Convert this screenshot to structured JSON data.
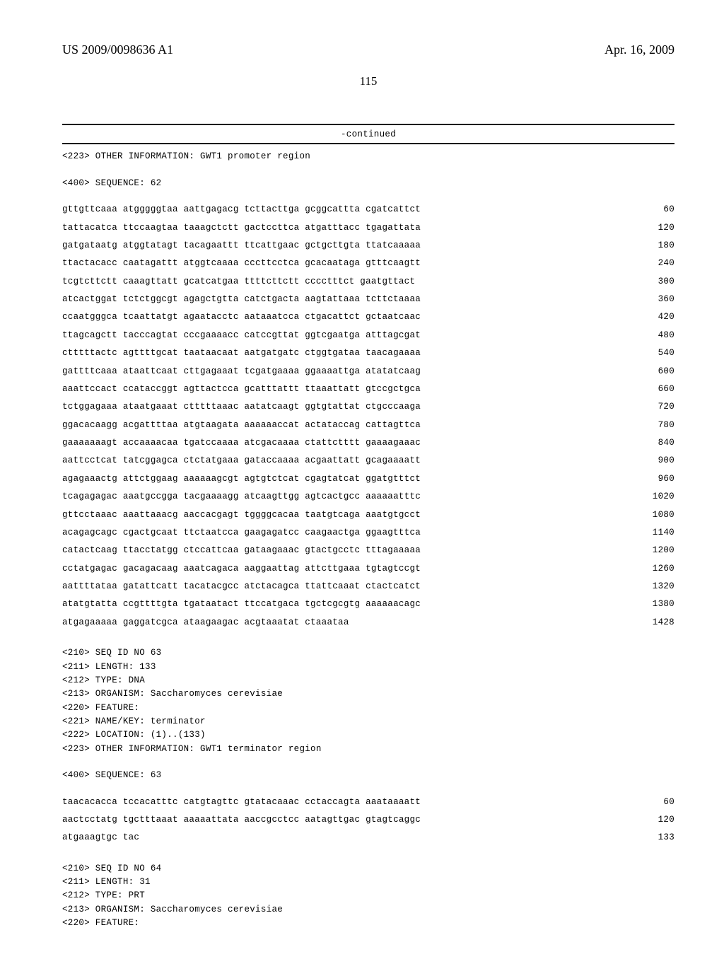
{
  "header": {
    "pub_no": "US 2009/0098636 A1",
    "pub_date": "Apr. 16, 2009",
    "page_no": "115"
  },
  "continued": "-continued",
  "block1": {
    "meta": "<223> OTHER INFORMATION: GWT1 promoter region",
    "seq_label": "<400> SEQUENCE: 62",
    "lines": [
      {
        "s": "gttgttcaaa atgggggtaa aattgagacg tcttacttga gcggcattta cgatcattct",
        "n": "60"
      },
      {
        "s": "tattacatca ttccaagtaa taaagctctt gactccttca atgatttacc tgagattata",
        "n": "120"
      },
      {
        "s": "gatgataatg atggtatagt tacagaattt ttcattgaac gctgcttgta ttatcaaaaa",
        "n": "180"
      },
      {
        "s": "ttactacacc caatagattt atggtcaaaa cccttcctca gcacaataga gtttcaagtt",
        "n": "240"
      },
      {
        "s": "tcgtcttctt caaagttatt gcatcatgaa ttttcttctt cccctttct gaatgttact",
        "n": "300"
      },
      {
        "s": "atcactggat tctctggcgt agagctgtta catctgacta aagtattaaa tcttctaaaa",
        "n": "360"
      },
      {
        "s": "ccaatgggca tcaattatgt agaatacctc aataaatcca ctgacattct gctaatcaac",
        "n": "420"
      },
      {
        "s": "ttagcagctt tacccagtat cccgaaaacc catccgttat ggtcgaatga atttagcgat",
        "n": "480"
      },
      {
        "s": "ctttttactc agttttgcat taataacaat aatgatgatc ctggtgataa taacagaaaa",
        "n": "540"
      },
      {
        "s": "gattttcaaa ataattcaat cttgagaaat tcgatgaaaa ggaaaattga atatatcaag",
        "n": "600"
      },
      {
        "s": "aaattccact ccataccggt agttactcca gcatttattt ttaaattatt gtccgctgca",
        "n": "660"
      },
      {
        "s": "tctggagaaa ataatgaaat ctttttaaac aatatcaagt ggtgtattat ctgcccaaga",
        "n": "720"
      },
      {
        "s": "ggacacaagg acgattttaa atgtaagata aaaaaaccat actataccag cattagttca",
        "n": "780"
      },
      {
        "s": "gaaaaaaagt accaaaacaa tgatccaaaa atcgacaaaa ctattctttt gaaaagaaac",
        "n": "840"
      },
      {
        "s": "aattcctcat tatcggagca ctctatgaaa gataccaaaa acgaattatt gcagaaaatt",
        "n": "900"
      },
      {
        "s": "agagaaactg attctggaag aaaaaagcgt agtgtctcat cgagtatcat ggatgtttct",
        "n": "960"
      },
      {
        "s": "tcagagagac aaatgccgga tacgaaaagg atcaagttgg agtcactgcc aaaaaatttc",
        "n": "1020"
      },
      {
        "s": "gttcctaaac aaattaaacg aaccacgagt tggggcacaa taatgtcaga aaatgtgcct",
        "n": "1080"
      },
      {
        "s": "acagagcagc cgactgcaat ttctaatcca gaagagatcc caagaactga ggaagtttca",
        "n": "1140"
      },
      {
        "s": "catactcaag ttacctatgg ctccattcaa gataagaaac gtactgcctc tttagaaaaa",
        "n": "1200"
      },
      {
        "s": "cctatgagac gacagacaag aaatcagaca aaggaattag attcttgaaa tgtagtccgt",
        "n": "1260"
      },
      {
        "s": "aattttataa gatattcatt tacatacgcc atctacagca ttattcaaat ctactcatct",
        "n": "1320"
      },
      {
        "s": "atatgtatta ccgttttgta tgataatact ttccatgaca tgctcgcgtg aaaaaacagc",
        "n": "1380"
      },
      {
        "s": "atgagaaaaa gaggatcgca ataagaagac acgtaaatat ctaaataa",
        "n": "1428"
      }
    ]
  },
  "block2": {
    "meta": [
      "<210> SEQ ID NO 63",
      "<211> LENGTH: 133",
      "<212> TYPE: DNA",
      "<213> ORGANISM: Saccharomyces cerevisiae",
      "<220> FEATURE:",
      "<221> NAME/KEY: terminator",
      "<222> LOCATION: (1)..(133)",
      "<223> OTHER INFORMATION: GWT1 terminator region"
    ],
    "seq_label": "<400> SEQUENCE: 63",
    "lines": [
      {
        "s": "taacacacca tccacatttc catgtagttc gtatacaaac cctaccagta aaataaaatt",
        "n": "60"
      },
      {
        "s": "aactcctatg tgctttaaat aaaaattata aaccgcctcc aatagttgac gtagtcaggc",
        "n": "120"
      },
      {
        "s": "atgaaagtgc tac",
        "n": "133"
      }
    ]
  },
  "block3": {
    "meta": [
      "<210> SEQ ID NO 64",
      "<211> LENGTH: 31",
      "<212> TYPE: PRT",
      "<213> ORGANISM: Saccharomyces cerevisiae",
      "<220> FEATURE:"
    ]
  }
}
